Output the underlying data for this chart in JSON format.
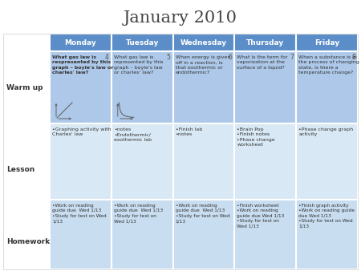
{
  "title": "January 2010",
  "headers": [
    "Monday",
    "Tuesday",
    "Wednesday",
    "Thursday",
    "Friday"
  ],
  "row_labels": [
    "Warm up",
    "Lesson",
    "Homework"
  ],
  "header_bg": "#5b8ec8",
  "header_text": "#ffffff",
  "warmup_bg": "#adc8e8",
  "lesson_bg": "#d8e8f4",
  "homework_bg": "#c8ddf0",
  "label_bg": "#ffffff",
  "border_color": "#ffffff",
  "title_color": "#444444",
  "warmup_numbers": [
    "4",
    "5",
    "6",
    "7",
    "8"
  ],
  "warmup_bold": [
    true,
    false,
    false,
    false,
    false
  ],
  "warmup_texts": [
    "What gas law is\nrespresented by this\ngraph – boyle's law or\ncharles' law?",
    "What gas law is\nrepresented by this\ngraph – boyle's law\nor charles' law?",
    "When energy is given\noff in a reaction, is\nthat exothermic or\nendothermic?",
    "What is the term for\nvaporization at the\nsurface of a liquid?",
    "When a substance is in\nthe process of changing\nstate, is there a\ntemperature change?"
  ],
  "lesson_texts": [
    "•Graphing activity with\nCharles' law",
    "•notes\n•Endothermic/\nexothermic lab",
    "•Finish lab\n•notes",
    "•Brain Pop\n•Finish notes\n•Phase change\nworksheet",
    "•Phase change graph\nactivity"
  ],
  "homework_texts": [
    "•Work on reading\nguide due  Wed 1/13\n•Study for test on Wed\n1/13",
    "•Work on reading\nguide due  Wed 1/13\n•Study for test on\nWed 1/13",
    "•Work on reading\nguide due  Wed 1/13\n•Study for test on Wed\n1/13",
    "•Finish worksheet\n•Work on reading\nguide due Wed 1/13\n•Study for test on\nWed 1/13",
    "•Finish graph activity\n•Work on reading guide\ndue Wed 1/13\n•Study for test on Wed\n1/13"
  ]
}
